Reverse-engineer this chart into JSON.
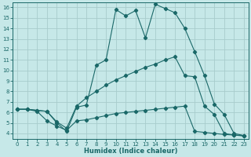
{
  "xlabel": "Humidex (Indice chaleur)",
  "bg_color": "#c6e8e8",
  "line_color": "#1a6868",
  "grid_color": "#a8cccc",
  "xlim": [
    -0.5,
    23.5
  ],
  "ylim": [
    3.5,
    16.5
  ],
  "xticks": [
    0,
    1,
    2,
    3,
    4,
    5,
    6,
    7,
    8,
    9,
    10,
    11,
    12,
    13,
    14,
    15,
    16,
    17,
    18,
    19,
    20,
    21,
    22,
    23
  ],
  "yticks": [
    4,
    5,
    6,
    7,
    8,
    9,
    10,
    11,
    12,
    13,
    14,
    15,
    16
  ],
  "line1_x": [
    0,
    1,
    2,
    3,
    4,
    5,
    6,
    7,
    8,
    9,
    10,
    11,
    12,
    13,
    14,
    15,
    16,
    17,
    18,
    19,
    20,
    21,
    22,
    23
  ],
  "line1_y": [
    6.3,
    6.3,
    6.1,
    5.2,
    4.7,
    4.3,
    5.2,
    5.3,
    5.5,
    5.7,
    5.9,
    6.0,
    6.1,
    6.2,
    6.3,
    6.4,
    6.5,
    6.6,
    4.2,
    4.1,
    4.0,
    3.9,
    3.85,
    3.8
  ],
  "line2_x": [
    0,
    1,
    2,
    3,
    4,
    5,
    6,
    7,
    8,
    9,
    10,
    11,
    12,
    13,
    14,
    15,
    16,
    17,
    18,
    19,
    20,
    21,
    22,
    23
  ],
  "line2_y": [
    6.3,
    6.3,
    6.2,
    6.1,
    5.1,
    4.5,
    6.6,
    7.4,
    8.0,
    8.6,
    9.1,
    9.5,
    9.9,
    10.3,
    10.6,
    11.0,
    11.3,
    9.5,
    9.4,
    6.6,
    5.8,
    4.0,
    3.85,
    3.75
  ],
  "line3_x": [
    0,
    1,
    2,
    3,
    4,
    5,
    6,
    7,
    8,
    9,
    10,
    11,
    12,
    13,
    14,
    15,
    16,
    17,
    18,
    19,
    20,
    21,
    22,
    23
  ],
  "line3_y": [
    6.3,
    6.3,
    6.2,
    6.1,
    5.0,
    4.2,
    6.5,
    6.7,
    10.5,
    11.0,
    15.8,
    15.2,
    15.7,
    13.1,
    16.3,
    15.9,
    15.5,
    14.0,
    11.8,
    9.5,
    6.8,
    5.8,
    4.0,
    3.8
  ]
}
